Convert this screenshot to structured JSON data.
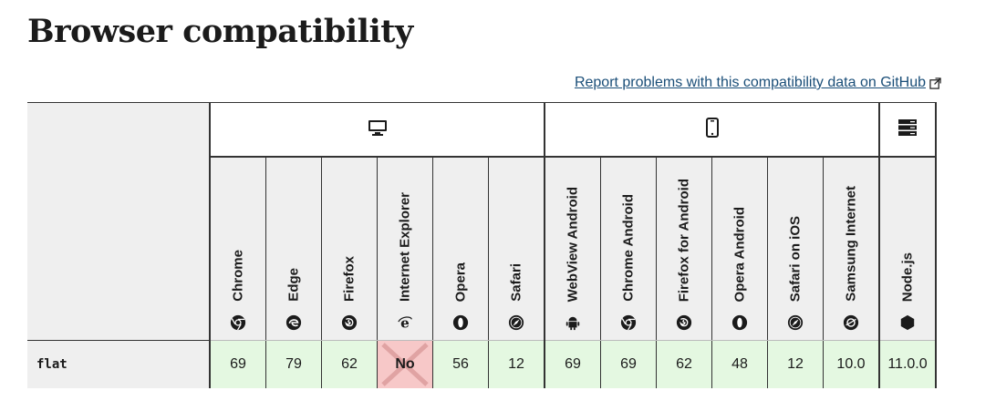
{
  "title": "Browser compatibility",
  "report_link": "Report problems with this compatibility data on GitHub",
  "platforms": [
    {
      "name": "desktop-icon"
    },
    {
      "name": "mobile-icon"
    },
    {
      "name": "server-icon"
    }
  ],
  "browsers": [
    {
      "label": "Chrome",
      "icon": "chrome-icon"
    },
    {
      "label": "Edge",
      "icon": "edge-icon"
    },
    {
      "label": "Firefox",
      "icon": "firefox-icon"
    },
    {
      "label": "Internet Explorer",
      "icon": "internet-explorer-icon"
    },
    {
      "label": "Opera",
      "icon": "opera-icon"
    },
    {
      "label": "Safari",
      "icon": "safari-icon"
    },
    {
      "label": "WebView Android",
      "icon": "android-icon"
    },
    {
      "label": "Chrome Android",
      "icon": "chrome-icon"
    },
    {
      "label": "Firefox for Android",
      "icon": "firefox-icon"
    },
    {
      "label": "Opera Android",
      "icon": "opera-icon"
    },
    {
      "label": "Safari on iOS",
      "icon": "safari-icon"
    },
    {
      "label": "Samsung Internet",
      "icon": "samsung-internet-icon"
    },
    {
      "label": "Node.js",
      "icon": "nodejs-icon"
    }
  ],
  "rows": [
    {
      "feature": "flat",
      "support": [
        "69",
        "79",
        "62",
        "No",
        "56",
        "12",
        "69",
        "69",
        "62",
        "48",
        "12",
        "10.0",
        "11.0.0"
      ]
    }
  ],
  "colors": {
    "supported_bg": "#e4f8e1",
    "unsupported_bg": "#f7c8c8",
    "link": "#1a4e78"
  }
}
